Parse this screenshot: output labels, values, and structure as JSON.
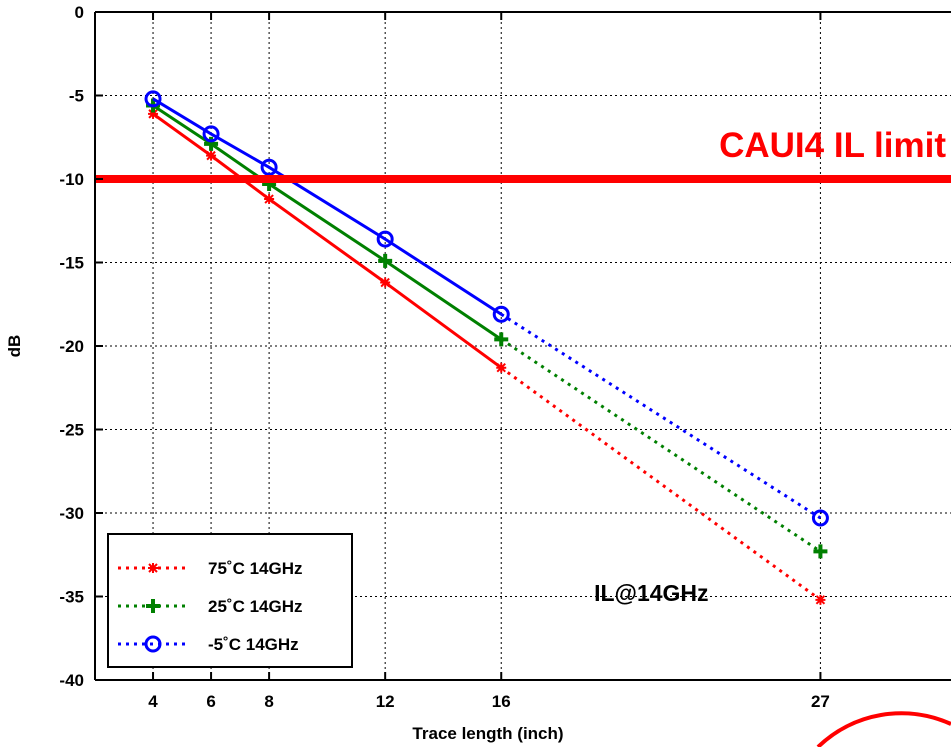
{
  "chart_data": {
    "type": "line",
    "title": "",
    "xlabel": "Trace length (inch)",
    "ylabel": "dB",
    "xlim": [
      2,
      31.5
    ],
    "ylim": [
      -40,
      0
    ],
    "xticks": [
      4,
      6,
      8,
      12,
      16,
      27
    ],
    "yticks": [
      0,
      -5,
      -10,
      -15,
      -20,
      -25,
      -30,
      -35,
      -40
    ],
    "grid": true,
    "legend_position": "bottom-left",
    "series": [
      {
        "name": "75˚C 14GHz",
        "color": "#ff0000",
        "marker": "star",
        "x": [
          4,
          6,
          8,
          12,
          16,
          27
        ],
        "y": [
          -6.1,
          -8.6,
          -11.2,
          -16.2,
          -21.3,
          -35.2
        ]
      },
      {
        "name": "25˚C 14GHz",
        "color": "#008000",
        "marker": "plus",
        "x": [
          4,
          6,
          8,
          12,
          16,
          27
        ],
        "y": [
          -5.6,
          -7.9,
          -10.3,
          -14.9,
          -19.6,
          -32.3
        ]
      },
      {
        "name": "-5˚C 14GHz",
        "color": "#0000ff",
        "marker": "circle",
        "x": [
          4,
          6,
          8,
          12,
          16,
          27
        ],
        "y": [
          -5.2,
          -7.3,
          -9.3,
          -13.6,
          -18.1,
          -30.3
        ]
      }
    ],
    "solid_until_x": 16,
    "reference_line": {
      "y": -10,
      "label": "CAUI4 IL limit",
      "color": "#ff0000"
    },
    "annotation": {
      "text": "IL@14GHz",
      "x": 19.2,
      "y": -34.8
    }
  }
}
